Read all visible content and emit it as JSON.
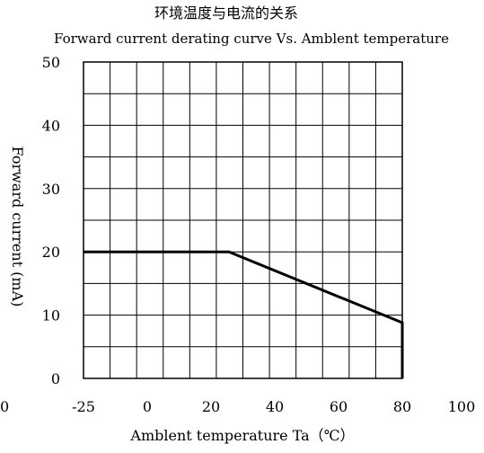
{
  "chart_data": {
    "type": "line",
    "title": "环境温度与电流的关系",
    "subtitle": "Forward current derating curve Vs. Amblent temperature",
    "xlabel": "Amblent temperature Ta（℃）",
    "ylabel": "Forward current (mA)",
    "x_tick_labels": [
      "-25",
      "0",
      "20",
      "40",
      "60",
      "80",
      "100"
    ],
    "x_extra_label": "0",
    "y_tick_labels": [
      "0",
      "10",
      "20",
      "30",
      "40",
      "50"
    ],
    "xlim": [
      -25,
      100
    ],
    "ylim": [
      0,
      50
    ],
    "grid": true,
    "grid_x_columns": 12,
    "grid_y_rows": 10,
    "series": [
      {
        "x": [
          -25,
          25,
          80,
          80
        ],
        "y": [
          20,
          20,
          8.8,
          0
        ]
      }
    ]
  }
}
